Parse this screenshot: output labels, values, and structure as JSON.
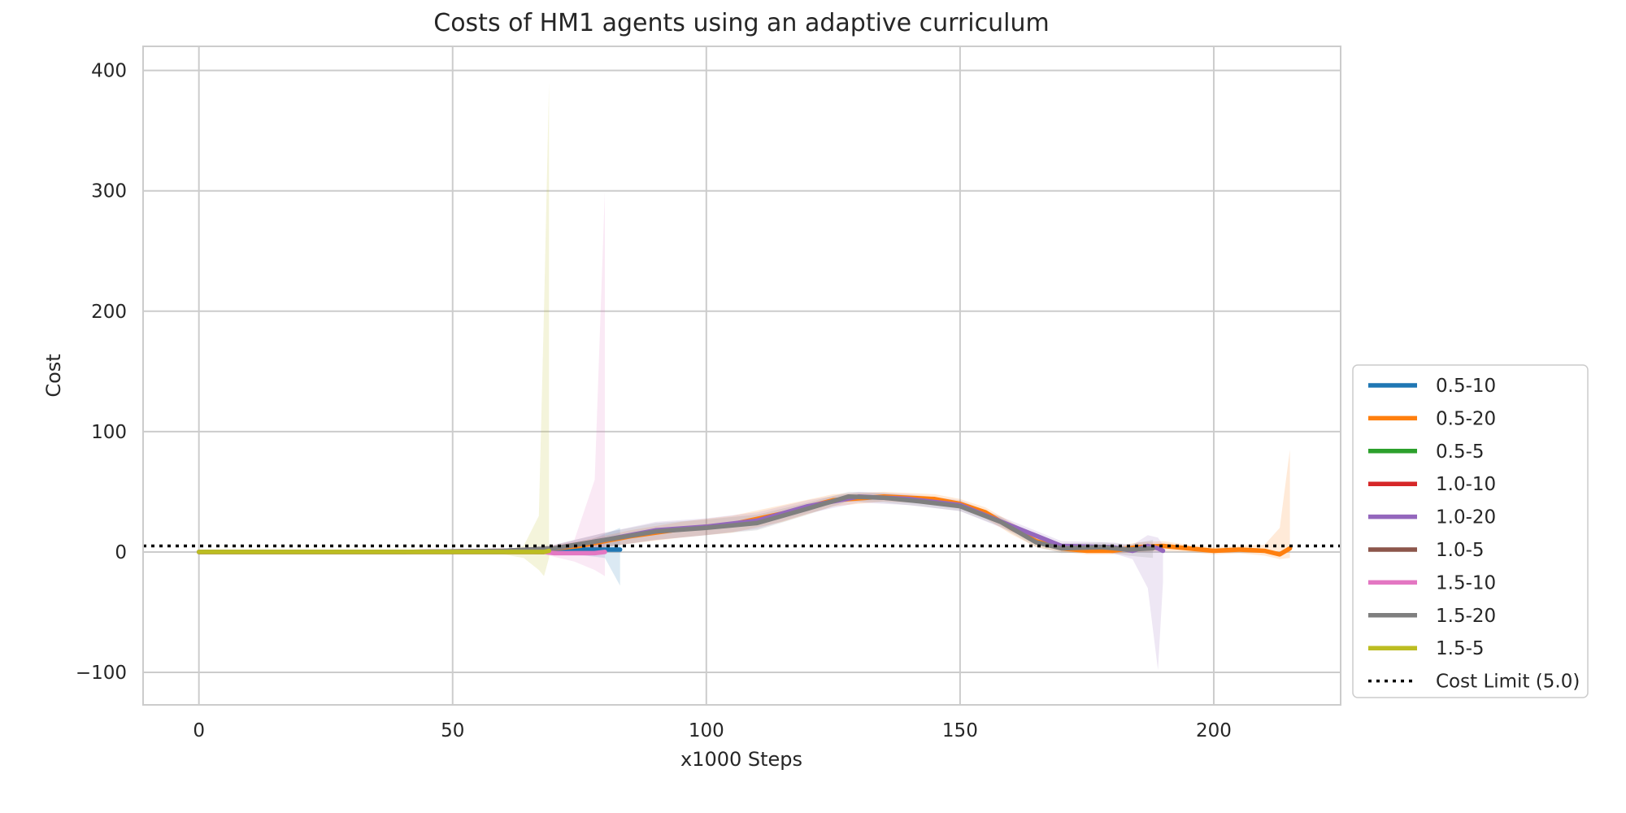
{
  "chart_data": {
    "type": "line",
    "title": "Costs of HM1 agents using an adaptive curriculum",
    "xlabel": "x1000 Steps",
    "ylabel": "Cost",
    "xlim": [
      -11,
      225
    ],
    "ylim": [
      -127,
      420
    ],
    "xticks": [
      0,
      50,
      100,
      150,
      200
    ],
    "yticks": [
      -100,
      0,
      100,
      200,
      300,
      400
    ],
    "xtick_labels": [
      "0",
      "50",
      "100",
      "150",
      "200"
    ],
    "ytick_labels": [
      "−100",
      "0",
      "100",
      "200",
      "300",
      "400"
    ],
    "grid": true,
    "legend_position": "lower-right outside",
    "cost_limit": {
      "name": "Cost Limit (5.0)",
      "value": 5.0,
      "color": "#000000"
    },
    "series": [
      {
        "name": "0.5-10",
        "color": "#1f77b4",
        "x": [
          0,
          20,
          40,
          60,
          68,
          72,
          76,
          80,
          83
        ],
        "y": [
          0,
          0,
          0,
          0,
          1,
          1,
          2,
          2,
          2
        ],
        "lower": [
          -1,
          -1,
          -1,
          -1,
          -1,
          -2,
          -3,
          -5,
          -28
        ],
        "upper": [
          1,
          1,
          1,
          2,
          3,
          5,
          8,
          15,
          20
        ]
      },
      {
        "name": "0.5-20",
        "color": "#ff7f0e",
        "x": [
          0,
          20,
          40,
          60,
          68,
          75,
          85,
          95,
          105,
          115,
          125,
          135,
          145,
          150,
          155,
          160,
          165,
          170,
          175,
          180,
          185,
          190,
          195,
          200,
          205,
          210,
          213,
          215
        ],
        "y": [
          0,
          0,
          0,
          1,
          2,
          5,
          13,
          19,
          23,
          32,
          43,
          46,
          44,
          40,
          33,
          20,
          9,
          3,
          1,
          1,
          4,
          5,
          3,
          1,
          2,
          1,
          -2,
          3
        ],
        "lower": [
          -1,
          -1,
          -1,
          0,
          0,
          1,
          7,
          12,
          16,
          25,
          38,
          42,
          40,
          36,
          28,
          15,
          4,
          0,
          -2,
          -2,
          0,
          1,
          0,
          -2,
          -1,
          -3,
          -6,
          -5
        ],
        "upper": [
          1,
          1,
          1,
          2,
          4,
          9,
          18,
          25,
          30,
          39,
          48,
          50,
          48,
          44,
          37,
          25,
          13,
          6,
          4,
          4,
          8,
          9,
          6,
          4,
          5,
          6,
          20,
          85
        ]
      },
      {
        "name": "0.5-5",
        "color": "#2ca02c",
        "x": [
          0,
          20,
          40,
          60,
          68
        ],
        "y": [
          0,
          0,
          0,
          0,
          0
        ],
        "lower": [
          -1,
          -1,
          -1,
          -1,
          -2
        ],
        "upper": [
          1,
          1,
          1,
          1,
          3
        ]
      },
      {
        "name": "1.0-10",
        "color": "#d62728",
        "x": [
          0,
          20,
          40,
          60,
          68
        ],
        "y": [
          0,
          0,
          0,
          0,
          0
        ],
        "lower": [
          -1,
          -1,
          -1,
          -1,
          -2
        ],
        "upper": [
          1,
          1,
          1,
          1,
          3
        ]
      },
      {
        "name": "1.0-20",
        "color": "#9467bd",
        "x": [
          0,
          20,
          40,
          60,
          70,
          80,
          90,
          100,
          110,
          120,
          130,
          140,
          150,
          160,
          170,
          180,
          184,
          187,
          189,
          190
        ],
        "y": [
          0,
          0,
          0,
          1,
          3,
          10,
          18,
          21,
          26,
          38,
          46,
          44,
          39,
          22,
          5,
          4,
          1,
          5,
          3,
          1
        ],
        "lower": [
          -1,
          -1,
          -1,
          0,
          0,
          4,
          10,
          14,
          19,
          32,
          41,
          39,
          34,
          17,
          1,
          -1,
          -6,
          -30,
          -98,
          -25
        ],
        "upper": [
          1,
          1,
          1,
          2,
          6,
          16,
          25,
          28,
          33,
          43,
          50,
          48,
          43,
          26,
          9,
          8,
          6,
          14,
          12,
          6
        ]
      },
      {
        "name": "1.0-5",
        "color": "#8c564b",
        "x": [
          0,
          20,
          40,
          60,
          68
        ],
        "y": [
          0,
          0,
          0,
          0,
          0
        ],
        "lower": [
          -1,
          -1,
          -1,
          -1,
          -2
        ],
        "upper": [
          1,
          1,
          1,
          1,
          3
        ]
      },
      {
        "name": "1.5-10",
        "color": "#e377c2",
        "x": [
          0,
          20,
          40,
          60,
          68,
          70,
          74,
          78,
          80
        ],
        "y": [
          0,
          0,
          0,
          0,
          0,
          -1,
          -1,
          -1,
          0
        ],
        "lower": [
          -1,
          -1,
          -1,
          -1,
          -2,
          -4,
          -8,
          -15,
          -20
        ],
        "upper": [
          1,
          1,
          1,
          1,
          3,
          5,
          10,
          60,
          300
        ]
      },
      {
        "name": "1.5-20",
        "color": "#7f7f7f",
        "x": [
          0,
          20,
          40,
          60,
          70,
          80,
          90,
          100,
          110,
          120,
          128,
          135,
          142,
          150,
          158,
          165,
          170,
          178,
          183,
          188
        ],
        "y": [
          0,
          0,
          0,
          1,
          3,
          10,
          17,
          20,
          24,
          36,
          46,
          45,
          42,
          38,
          25,
          8,
          3,
          4,
          2,
          3
        ],
        "lower": [
          -1,
          -1,
          -1,
          0,
          0,
          4,
          10,
          14,
          18,
          31,
          42,
          41,
          38,
          34,
          21,
          4,
          -1,
          0,
          -3,
          -5
        ],
        "upper": [
          1,
          1,
          1,
          2,
          6,
          16,
          24,
          27,
          31,
          41,
          50,
          49,
          46,
          42,
          29,
          12,
          7,
          8,
          6,
          10
        ]
      },
      {
        "name": "1.5-5",
        "color": "#bcbd22",
        "x": [
          0,
          20,
          40,
          60,
          64,
          67,
          68,
          69
        ],
        "y": [
          0,
          0,
          0,
          0,
          0,
          0,
          0,
          1
        ],
        "lower": [
          -1,
          -1,
          -1,
          -2,
          -5,
          -15,
          -20,
          -5
        ],
        "upper": [
          1,
          1,
          1,
          2,
          5,
          30,
          200,
          390
        ]
      }
    ]
  }
}
